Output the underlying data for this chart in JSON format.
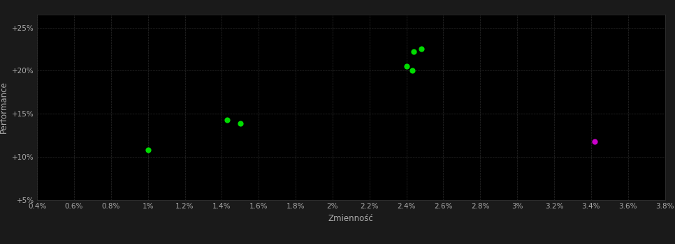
{
  "background_color": "#1a1a1a",
  "plot_bg_color": "#000000",
  "grid_color": "#2a2a2a",
  "grid_style": "--",
  "xlabel": "Zmienność",
  "ylabel": "Performance",
  "xlim": [
    0.004,
    0.038
  ],
  "ylim": [
    0.05,
    0.265
  ],
  "xtick_vals": [
    0.004,
    0.006,
    0.008,
    0.01,
    0.012,
    0.014,
    0.016,
    0.018,
    0.02,
    0.022,
    0.024,
    0.026,
    0.028,
    0.03,
    0.032,
    0.034,
    0.036,
    0.038
  ],
  "ytick_vals": [
    0.05,
    0.1,
    0.15,
    0.2,
    0.25
  ],
  "green_points": [
    [
      0.01,
      0.108
    ],
    [
      0.0143,
      0.143
    ],
    [
      0.015,
      0.139
    ],
    [
      0.024,
      0.205
    ],
    [
      0.0243,
      0.2
    ],
    [
      0.0244,
      0.222
    ],
    [
      0.0248,
      0.225
    ]
  ],
  "magenta_points": [
    [
      0.0342,
      0.118
    ]
  ],
  "green_color": "#00dd00",
  "magenta_color": "#cc00cc",
  "point_size": 35,
  "font_color": "#aaaaaa",
  "tick_fontsize": 7.5,
  "label_fontsize": 8.5
}
